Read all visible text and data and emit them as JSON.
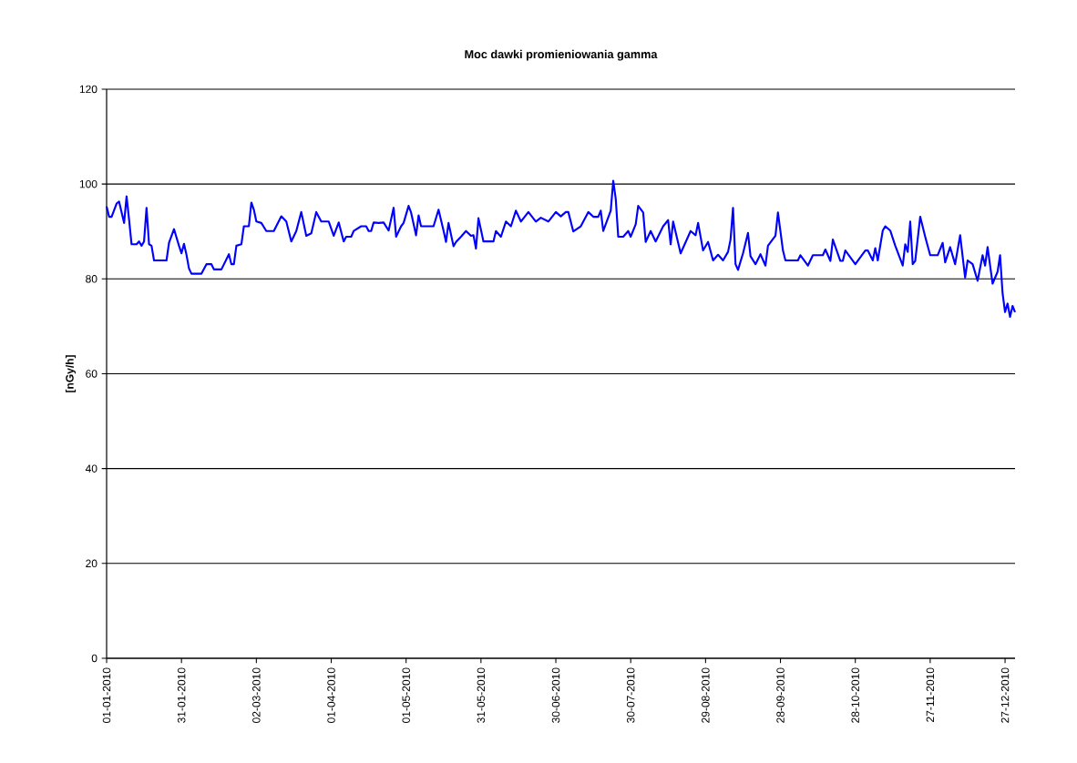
{
  "chart_data": {
    "type": "line",
    "title": "Moc dawki promieniowania gamma",
    "ylabel": "[nGy/h]",
    "xlim": [
      "2010-01-01",
      "2010-12-31"
    ],
    "xticks": [
      {
        "value": "2010-01-01",
        "label": "01-01-2010"
      },
      {
        "value": "2010-01-31",
        "label": "31-01-2010"
      },
      {
        "value": "2010-03-02",
        "label": "02-03-2010"
      },
      {
        "value": "2010-04-01",
        "label": "01-04-2010"
      },
      {
        "value": "2010-05-01",
        "label": "01-05-2010"
      },
      {
        "value": "2010-05-31",
        "label": "31-05-2010"
      },
      {
        "value": "2010-06-30",
        "label": "30-06-2010"
      },
      {
        "value": "2010-07-30",
        "label": "30-07-2010"
      },
      {
        "value": "2010-08-29",
        "label": "29-08-2010"
      },
      {
        "value": "2010-09-28",
        "label": "28-09-2010"
      },
      {
        "value": "2010-10-28",
        "label": "28-10-2010"
      },
      {
        "value": "2010-11-27",
        "label": "27-11-2010"
      },
      {
        "value": "2010-12-27",
        "label": "27-12-2010"
      }
    ],
    "ylim": [
      0,
      120
    ],
    "yticks": [
      0,
      20,
      40,
      60,
      80,
      100,
      120
    ],
    "grid": "y",
    "x": [
      "2010-01-01",
      "2010-01-02",
      "2010-01-03",
      "2010-01-05",
      "2010-01-06",
      "2010-01-08",
      "2010-01-09",
      "2010-01-10",
      "2010-01-11",
      "2010-01-13",
      "2010-01-14",
      "2010-01-15",
      "2010-01-16",
      "2010-01-17",
      "2010-01-18",
      "2010-01-19",
      "2010-01-20",
      "2010-01-25",
      "2010-01-26",
      "2010-01-28",
      "2010-01-30",
      "2010-01-31",
      "2010-02-01",
      "2010-02-02",
      "2010-02-03",
      "2010-02-04",
      "2010-02-08",
      "2010-02-10",
      "2010-02-12",
      "2010-02-13",
      "2010-02-16",
      "2010-02-19",
      "2010-02-20",
      "2010-02-21",
      "2010-02-22",
      "2010-02-24",
      "2010-02-25",
      "2010-02-27",
      "2010-02-28",
      "2010-03-01",
      "2010-03-02",
      "2010-03-04",
      "2010-03-06",
      "2010-03-09",
      "2010-03-12",
      "2010-03-14",
      "2010-03-16",
      "2010-03-18",
      "2010-03-20",
      "2010-03-22",
      "2010-03-24",
      "2010-03-26",
      "2010-03-28",
      "2010-03-31",
      "2010-04-02",
      "2010-04-04",
      "2010-04-06",
      "2010-04-07",
      "2010-04-09",
      "2010-04-10",
      "2010-04-13",
      "2010-04-15",
      "2010-04-16",
      "2010-04-17",
      "2010-04-18",
      "2010-04-20",
      "2010-04-22",
      "2010-04-24",
      "2010-04-26",
      "2010-04-27",
      "2010-04-29",
      "2010-04-30",
      "2010-05-02",
      "2010-05-03",
      "2010-05-05",
      "2010-05-06",
      "2010-05-07",
      "2010-05-12",
      "2010-05-14",
      "2010-05-16",
      "2010-05-17",
      "2010-05-18",
      "2010-05-20",
      "2010-05-21",
      "2010-05-23",
      "2010-05-25",
      "2010-05-27",
      "2010-05-28",
      "2010-05-29",
      "2010-05-30",
      "2010-06-01",
      "2010-06-05",
      "2010-06-06",
      "2010-06-08",
      "2010-06-10",
      "2010-06-12",
      "2010-06-14",
      "2010-06-16",
      "2010-06-19",
      "2010-06-22",
      "2010-06-24",
      "2010-06-27",
      "2010-06-30",
      "2010-07-02",
      "2010-07-04",
      "2010-07-05",
      "2010-07-07",
      "2010-07-10",
      "2010-07-13",
      "2010-07-15",
      "2010-07-17",
      "2010-07-18",
      "2010-07-19",
      "2010-07-22",
      "2010-07-23",
      "2010-07-24",
      "2010-07-25",
      "2010-07-27",
      "2010-07-29",
      "2010-07-30",
      "2010-08-01",
      "2010-08-02",
      "2010-08-04",
      "2010-08-05",
      "2010-08-07",
      "2010-08-09",
      "2010-08-12",
      "2010-08-14",
      "2010-08-15",
      "2010-08-16",
      "2010-08-19",
      "2010-08-23",
      "2010-08-25",
      "2010-08-26",
      "2010-08-28",
      "2010-08-30",
      "2010-09-01",
      "2010-09-03",
      "2010-09-05",
      "2010-09-07",
      "2010-09-08",
      "2010-09-09",
      "2010-09-10",
      "2010-09-11",
      "2010-09-13",
      "2010-09-15",
      "2010-09-16",
      "2010-09-18",
      "2010-09-20",
      "2010-09-22",
      "2010-09-23",
      "2010-09-26",
      "2010-09-27",
      "2010-09-29",
      "2010-09-30",
      "2010-10-05",
      "2010-10-06",
      "2010-10-09",
      "2010-10-11",
      "2010-10-15",
      "2010-10-16",
      "2010-10-18",
      "2010-10-19",
      "2010-10-22",
      "2010-10-23",
      "2010-10-24",
      "2010-10-28",
      "2010-11-01",
      "2010-11-02",
      "2010-11-04",
      "2010-11-05",
      "2010-11-06",
      "2010-11-08",
      "2010-11-09",
      "2010-11-11",
      "2010-11-13",
      "2010-11-16",
      "2010-11-17",
      "2010-11-18",
      "2010-11-19",
      "2010-11-20",
      "2010-11-21",
      "2010-11-23",
      "2010-11-25",
      "2010-11-27",
      "2010-11-30",
      "2010-12-02",
      "2010-12-03",
      "2010-12-05",
      "2010-12-07",
      "2010-12-09",
      "2010-12-11",
      "2010-12-12",
      "2010-12-14",
      "2010-12-16",
      "2010-12-18",
      "2010-12-19",
      "2010-12-20",
      "2010-12-22",
      "2010-12-24",
      "2010-12-25",
      "2010-12-26",
      "2010-12-27",
      "2010-12-28",
      "2010-12-29",
      "2010-12-30",
      "2010-12-31"
    ],
    "series": [
      {
        "color": "#0000ff",
        "values": [
          95.3,
          93.1,
          93.1,
          95.9,
          96.3,
          91.8,
          97.4,
          92.5,
          87.3,
          87.3,
          87.9,
          87.0,
          87.9,
          95.0,
          87.3,
          87.0,
          83.9,
          83.9,
          87.6,
          90.5,
          87.0,
          85.4,
          87.4,
          85.1,
          82.2,
          81.1,
          81.1,
          83.1,
          83.1,
          82.0,
          82.0,
          85.2,
          83.1,
          83.1,
          87.0,
          87.3,
          91.1,
          91.1,
          96.1,
          94.6,
          92.1,
          91.8,
          90.1,
          90.1,
          93.2,
          92.1,
          87.9,
          90.1,
          94.1,
          89.1,
          89.6,
          94.1,
          92.1,
          92.1,
          89.1,
          91.9,
          87.9,
          88.9,
          88.9,
          90.1,
          91.1,
          91.1,
          90.1,
          90.1,
          91.9,
          91.8,
          91.9,
          90.2,
          95.0,
          88.9,
          91.1,
          91.8,
          95.4,
          94.0,
          89.2,
          93.4,
          91.1,
          91.1,
          94.6,
          90.2,
          87.8,
          91.8,
          86.9,
          87.8,
          88.9,
          90.1,
          89.1,
          89.2,
          86.4,
          92.8,
          87.9,
          87.9,
          90.1,
          88.9,
          92.1,
          91.1,
          94.4,
          92.1,
          94.1,
          92.1,
          92.9,
          92.1,
          94.1,
          93.2,
          94.1,
          94.1,
          90.0,
          91.1,
          94.1,
          93.1,
          93.1,
          94.4,
          90.1,
          94.4,
          100.7,
          96.9,
          88.9,
          88.9,
          90.1,
          88.9,
          91.5,
          95.4,
          94.0,
          87.8,
          90.1,
          87.9,
          91.1,
          92.4,
          87.3,
          92.1,
          85.4,
          90.1,
          89.2,
          91.8,
          86.0,
          87.8,
          83.9,
          85.1,
          83.9,
          85.7,
          88.3,
          95.0,
          83.1,
          81.9,
          85.4,
          89.7,
          84.8,
          83.1,
          85.2,
          82.8,
          87.0,
          89.1,
          94.0,
          86.0,
          83.9,
          83.9,
          85.0,
          82.8,
          85.0,
          85.0,
          86.2,
          83.8,
          88.3,
          83.8,
          83.8,
          86.0,
          83.1,
          86.0,
          86.0,
          83.9,
          86.5,
          83.9,
          90.2,
          91.1,
          90.2,
          87.0,
          82.8,
          87.3,
          85.7,
          92.1,
          83.1,
          83.8,
          93.1,
          88.9,
          85.0,
          85.0,
          87.6,
          83.5,
          86.7,
          83.1,
          89.2,
          80.3,
          83.9,
          83.1,
          79.6,
          85.0,
          82.8,
          86.7,
          79.0,
          81.5,
          85.0,
          77.0,
          73.0,
          74.8,
          72.0,
          74.3,
          73.0
        ]
      }
    ]
  }
}
